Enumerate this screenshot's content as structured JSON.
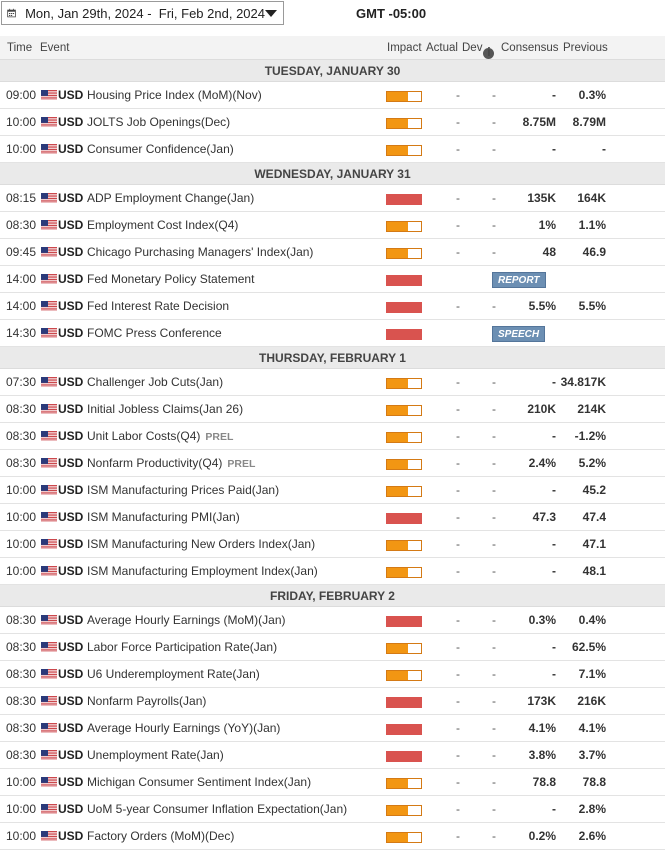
{
  "toolbar": {
    "date_range": "Mon, Jan 29th, 2024 -  Fri, Feb 2nd, 2024",
    "timezone": "GMT -05:00"
  },
  "columns": {
    "time": "Time",
    "event": "Event",
    "impact": "Impact",
    "actual": "Actual",
    "dev": "Dev",
    "consensus": "Consensus",
    "previous": "Previous"
  },
  "colors": {
    "medium_impact": "#f29613",
    "high_impact": "#d9534f",
    "badge": "#6c8fb3"
  },
  "days": [
    {
      "title": "TUESDAY, JANUARY 30",
      "events": [
        {
          "time": "09:00",
          "currency": "USD",
          "event": "Housing Price Index (MoM)(Nov)",
          "impact": "medium",
          "actual": "-",
          "dev": "-",
          "consensus": "-",
          "previous": "0.3%"
        },
        {
          "time": "10:00",
          "currency": "USD",
          "event": "JOLTS Job Openings(Dec)",
          "impact": "medium",
          "actual": "-",
          "dev": "-",
          "consensus": "8.75M",
          "previous": "8.79M"
        },
        {
          "time": "10:00",
          "currency": "USD",
          "event": "Consumer Confidence(Jan)",
          "impact": "medium",
          "actual": "-",
          "dev": "-",
          "consensus": "-",
          "previous": "-"
        }
      ]
    },
    {
      "title": "WEDNESDAY, JANUARY 31",
      "events": [
        {
          "time": "08:15",
          "currency": "USD",
          "event": "ADP Employment Change(Jan)",
          "impact": "high",
          "actual": "-",
          "dev": "-",
          "consensus": "135K",
          "previous": "164K"
        },
        {
          "time": "08:30",
          "currency": "USD",
          "event": "Employment Cost Index(Q4)",
          "impact": "medium",
          "actual": "-",
          "dev": "-",
          "consensus": "1%",
          "previous": "1.1%"
        },
        {
          "time": "09:45",
          "currency": "USD",
          "event": "Chicago Purchasing Managers' Index(Jan)",
          "impact": "medium",
          "actual": "-",
          "dev": "-",
          "consensus": "48",
          "previous": "46.9"
        },
        {
          "time": "14:00",
          "currency": "USD",
          "event": "Fed Monetary Policy Statement",
          "impact": "high",
          "badge": "REPORT"
        },
        {
          "time": "14:00",
          "currency": "USD",
          "event": "Fed Interest Rate Decision",
          "impact": "high",
          "actual": "-",
          "dev": "-",
          "consensus": "5.5%",
          "previous": "5.5%"
        },
        {
          "time": "14:30",
          "currency": "USD",
          "event": "FOMC Press Conference",
          "impact": "high",
          "badge": "SPEECH"
        }
      ]
    },
    {
      "title": "THURSDAY, FEBRUARY 1",
      "events": [
        {
          "time": "07:30",
          "currency": "USD",
          "event": "Challenger Job Cuts(Jan)",
          "impact": "medium",
          "actual": "-",
          "dev": "-",
          "consensus": "-",
          "previous": "34.817K"
        },
        {
          "time": "08:30",
          "currency": "USD",
          "event": "Initial Jobless Claims(Jan 26)",
          "impact": "medium",
          "actual": "-",
          "dev": "-",
          "consensus": "210K",
          "previous": "214K"
        },
        {
          "time": "08:30",
          "currency": "USD",
          "event": "Unit Labor Costs(Q4)",
          "tag": "PREL",
          "impact": "medium",
          "actual": "-",
          "dev": "-",
          "consensus": "-",
          "previous": "-1.2%"
        },
        {
          "time": "08:30",
          "currency": "USD",
          "event": "Nonfarm Productivity(Q4)",
          "tag": "PREL",
          "impact": "medium",
          "actual": "-",
          "dev": "-",
          "consensus": "2.4%",
          "previous": "5.2%"
        },
        {
          "time": "10:00",
          "currency": "USD",
          "event": "ISM Manufacturing Prices Paid(Jan)",
          "impact": "medium",
          "actual": "-",
          "dev": "-",
          "consensus": "-",
          "previous": "45.2"
        },
        {
          "time": "10:00",
          "currency": "USD",
          "event": "ISM Manufacturing PMI(Jan)",
          "impact": "high",
          "actual": "-",
          "dev": "-",
          "consensus": "47.3",
          "previous": "47.4"
        },
        {
          "time": "10:00",
          "currency": "USD",
          "event": "ISM Manufacturing New Orders Index(Jan)",
          "impact": "medium",
          "actual": "-",
          "dev": "-",
          "consensus": "-",
          "previous": "47.1"
        },
        {
          "time": "10:00",
          "currency": "USD",
          "event": "ISM Manufacturing Employment Index(Jan)",
          "impact": "medium",
          "actual": "-",
          "dev": "-",
          "consensus": "-",
          "previous": "48.1"
        }
      ]
    },
    {
      "title": "FRIDAY, FEBRUARY 2",
      "events": [
        {
          "time": "08:30",
          "currency": "USD",
          "event": "Average Hourly Earnings (MoM)(Jan)",
          "impact": "high",
          "actual": "-",
          "dev": "-",
          "consensus": "0.3%",
          "previous": "0.4%"
        },
        {
          "time": "08:30",
          "currency": "USD",
          "event": "Labor Force Participation Rate(Jan)",
          "impact": "medium",
          "actual": "-",
          "dev": "-",
          "consensus": "-",
          "previous": "62.5%"
        },
        {
          "time": "08:30",
          "currency": "USD",
          "event": "U6 Underemployment Rate(Jan)",
          "impact": "medium",
          "actual": "-",
          "dev": "-",
          "consensus": "-",
          "previous": "7.1%"
        },
        {
          "time": "08:30",
          "currency": "USD",
          "event": "Nonfarm Payrolls(Jan)",
          "impact": "high",
          "actual": "-",
          "dev": "-",
          "consensus": "173K",
          "previous": "216K"
        },
        {
          "time": "08:30",
          "currency": "USD",
          "event": "Average Hourly Earnings (YoY)(Jan)",
          "impact": "high",
          "actual": "-",
          "dev": "-",
          "consensus": "4.1%",
          "previous": "4.1%"
        },
        {
          "time": "08:30",
          "currency": "USD",
          "event": "Unemployment Rate(Jan)",
          "impact": "high",
          "actual": "-",
          "dev": "-",
          "consensus": "3.8%",
          "previous": "3.7%"
        },
        {
          "time": "10:00",
          "currency": "USD",
          "event": "Michigan Consumer Sentiment Index(Jan)",
          "impact": "medium",
          "actual": "-",
          "dev": "-",
          "consensus": "78.8",
          "previous": "78.8"
        },
        {
          "time": "10:00",
          "currency": "USD",
          "event": "UoM 5-year Consumer Inflation Expectation(Jan)",
          "impact": "medium",
          "actual": "-",
          "dev": "-",
          "consensus": "-",
          "previous": "2.8%"
        },
        {
          "time": "10:00",
          "currency": "USD",
          "event": "Factory Orders (MoM)(Dec)",
          "impact": "medium",
          "actual": "-",
          "dev": "-",
          "consensus": "0.2%",
          "previous": "2.6%"
        }
      ]
    }
  ]
}
